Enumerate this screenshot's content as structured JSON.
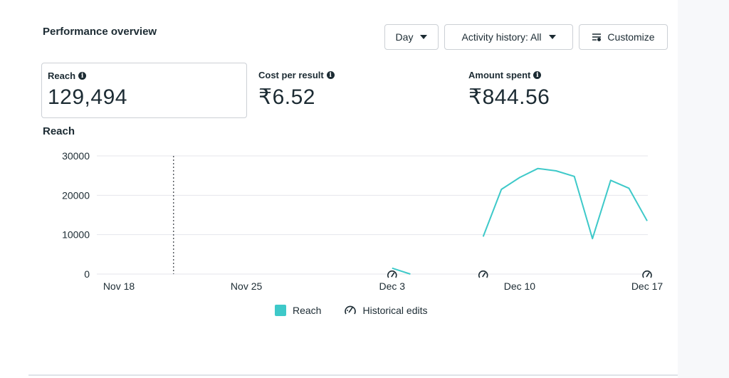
{
  "header": {
    "title": "Performance overview",
    "day_label": "Day",
    "activity_label": "Activity history: All",
    "customize_label": "Customize"
  },
  "metrics": [
    {
      "label": "Reach",
      "value": "129,494",
      "selected": true
    },
    {
      "label": "Cost per result",
      "value": "₹6.52",
      "selected": false
    },
    {
      "label": "Amount spent",
      "value": "₹844.56",
      "selected": false
    }
  ],
  "chart_title": "Reach",
  "colors": {
    "series": "#3ec9c9",
    "grid": "#e4e6eb",
    "text": "#1c2b33"
  },
  "icons": {
    "info": "info-icon",
    "edit_marker": "historical-edit-icon",
    "customize": "customize-icon",
    "dropdown": "caret-down-icon"
  },
  "chart_data": {
    "type": "line",
    "title": "Reach",
    "xlabel": "",
    "ylabel": "",
    "ylim": [
      0,
      30000
    ],
    "y_ticks": [
      0,
      10000,
      20000,
      30000
    ],
    "x_ticks": [
      "Nov 18",
      "Nov 25",
      "Dec 3",
      "Dec 10",
      "Dec 17"
    ],
    "grid": true,
    "legend": "bottom-center",
    "series": [
      {
        "name": "Reach",
        "segments": [
          [
            {
              "x": "Dec 3",
              "y": 1500
            },
            {
              "x": "Dec 4",
              "y": 0
            }
          ],
          [
            {
              "x": "Dec 8",
              "y": 9500
            },
            {
              "x": "Dec 9",
              "y": 21500
            },
            {
              "x": "Dec 10",
              "y": 24500
            },
            {
              "x": "Dec 11",
              "y": 26800
            },
            {
              "x": "Dec 12",
              "y": 26200
            },
            {
              "x": "Dec 13",
              "y": 24800
            },
            {
              "x": "Dec 14",
              "y": 9000
            },
            {
              "x": "Dec 15",
              "y": 23800
            },
            {
              "x": "Dec 16",
              "y": 21800
            },
            {
              "x": "Dec 17",
              "y": 13500
            }
          ]
        ]
      }
    ],
    "dotted_marker": "Nov 21",
    "edit_markers": [
      "Dec 3",
      "Dec 8",
      "Dec 17"
    ]
  },
  "legend": {
    "reach": "Reach",
    "edits": "Historical edits"
  }
}
